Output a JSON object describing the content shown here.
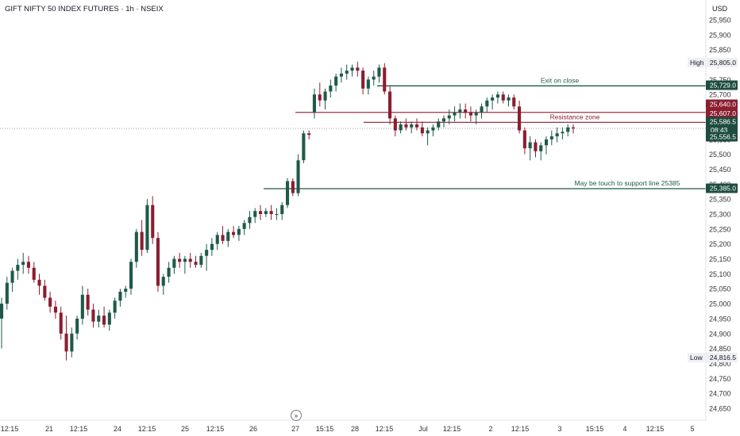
{
  "header": {
    "title": "GIFT NIFTY 50 INDEX FUTURES · 1h · NSEIX"
  },
  "currency": "USD",
  "colors": {
    "up": "#1e5a4a",
    "down": "#8b1e2f",
    "text": "#131722",
    "axis_text": "#333333",
    "current_line": "#9aa0a8",
    "support_line": "#1e5a4a",
    "exit_line": "#1e5a4a",
    "resistance_line": "#8b1e2f"
  },
  "scroll_icon": "double-chevron-right-icon",
  "chart_data": {
    "type": "candlestick",
    "title": "GIFT NIFTY 50 INDEX FUTURES · 1h · NSEIX",
    "ylim": [
      24600,
      26000
    ],
    "y_ticks": [
      24650,
      24700,
      24750,
      24800,
      24850,
      24900,
      24950,
      25000,
      25050,
      25100,
      25150,
      25200,
      25250,
      25300,
      25350,
      25400,
      25450,
      25500,
      25550,
      25600,
      25650,
      25700,
      25750,
      25800,
      25850,
      25900,
      25950
    ],
    "x_tick_labels": [
      "12:15",
      "21",
      "12:15",
      "24",
      "12:15",
      "25",
      "12:15",
      "26",
      "27",
      "15:15",
      "28",
      "12:15",
      "Jul",
      "12:15",
      "2",
      "12:15",
      "3",
      "15:15",
      "4",
      "12:15",
      "5"
    ],
    "price_tags": [
      {
        "label": "",
        "value": "25,729.0",
        "kind": "exit"
      },
      {
        "label": "",
        "value": "25,640.0",
        "kind": "resistance"
      },
      {
        "label": "",
        "value": "25,607.0",
        "kind": "resistance"
      },
      {
        "label": "",
        "value": "25,586.5",
        "countdown": "08:43",
        "kind": "current"
      },
      {
        "label": "",
        "value": "25,556.5",
        "kind": "current-low"
      },
      {
        "label": "",
        "value": "25,385.0",
        "kind": "support"
      },
      {
        "label": "High",
        "value": "25,805.0",
        "kind": "high"
      },
      {
        "label": "Low",
        "value": "24,816.5",
        "kind": "low"
      }
    ],
    "lines": [
      {
        "name": "exit",
        "price": 25729,
        "label": "Exit on close"
      },
      {
        "name": "resistance-upper",
        "price": 25640,
        "label": ""
      },
      {
        "name": "resistance-lower",
        "price": 25607,
        "label": "Resistance zone"
      },
      {
        "name": "support",
        "price": 25385,
        "label": "May be touch to support line 25385"
      },
      {
        "name": "current",
        "price": 25586.5,
        "label": ""
      }
    ],
    "ohlc": [
      [
        24950,
        25020,
        24850,
        25000
      ],
      [
        25000,
        25090,
        24980,
        25070
      ],
      [
        25070,
        25120,
        25040,
        25110
      ],
      [
        25110,
        25150,
        25080,
        25130
      ],
      [
        25130,
        25170,
        25100,
        25140
      ],
      [
        25140,
        25160,
        25100,
        25120
      ],
      [
        25120,
        25140,
        25070,
        25080
      ],
      [
        25080,
        25100,
        25030,
        25060
      ],
      [
        25060,
        25080,
        25010,
        25020
      ],
      [
        25020,
        25040,
        24970,
        24990
      ],
      [
        24990,
        25010,
        24950,
        24970
      ],
      [
        24970,
        24990,
        24880,
        24900
      ],
      [
        24900,
        24960,
        24810,
        24840
      ],
      [
        24840,
        24920,
        24820,
        24900
      ],
      [
        24900,
        24960,
        24880,
        24950
      ],
      [
        24950,
        25060,
        24930,
        25030
      ],
      [
        25030,
        25050,
        24960,
        24980
      ],
      [
        24980,
        25000,
        24920,
        24940
      ],
      [
        24940,
        24980,
        24920,
        24960
      ],
      [
        24960,
        24990,
        24920,
        24930
      ],
      [
        24930,
        24980,
        24910,
        24970
      ],
      [
        24970,
        25020,
        24950,
        25010
      ],
      [
        25010,
        25050,
        24990,
        25040
      ],
      [
        25040,
        25060,
        25020,
        25050
      ],
      [
        25050,
        25150,
        25030,
        25140
      ],
      [
        25140,
        25250,
        25120,
        25240
      ],
      [
        25240,
        25280,
        25160,
        25180
      ],
      [
        25180,
        25350,
        25170,
        25330
      ],
      [
        25330,
        25360,
        25200,
        25220
      ],
      [
        25220,
        25240,
        25040,
        25060
      ],
      [
        25060,
        25100,
        25030,
        25090
      ],
      [
        25090,
        25140,
        25070,
        25120
      ],
      [
        25120,
        25160,
        25100,
        25150
      ],
      [
        25150,
        25170,
        25120,
        25140
      ],
      [
        25140,
        25160,
        25100,
        25150
      ],
      [
        25150,
        25170,
        25120,
        25140
      ],
      [
        25140,
        25160,
        25120,
        25130
      ],
      [
        25130,
        25170,
        25120,
        25160
      ],
      [
        25160,
        25200,
        25110,
        25180
      ],
      [
        25180,
        25220,
        25160,
        25200
      ],
      [
        25200,
        25240,
        25180,
        25230
      ],
      [
        25230,
        25260,
        25200,
        25210
      ],
      [
        25210,
        25250,
        25190,
        25240
      ],
      [
        25240,
        25260,
        25220,
        25230
      ],
      [
        25230,
        25260,
        25210,
        25250
      ],
      [
        25250,
        25280,
        25230,
        25270
      ],
      [
        25270,
        25310,
        25250,
        25290
      ],
      [
        25290,
        25320,
        25270,
        25310
      ],
      [
        25310,
        25330,
        25280,
        25300
      ],
      [
        25300,
        25320,
        25290,
        25310
      ],
      [
        25310,
        25330,
        25280,
        25300
      ],
      [
        25300,
        25320,
        25280,
        25300
      ],
      [
        25300,
        25340,
        25280,
        25330
      ],
      [
        25330,
        25420,
        25320,
        25410
      ],
      [
        25410,
        25420,
        25360,
        25370
      ],
      [
        25370,
        25500,
        25360,
        25480
      ],
      [
        25480,
        25580,
        25470,
        25570
      ],
      [
        25570,
        25580,
        25550,
        25565
      ],
      [
        25640,
        25720,
        25620,
        25700
      ],
      [
        25700,
        25740,
        25660,
        25680
      ],
      [
        25680,
        25720,
        25650,
        25710
      ],
      [
        25710,
        25750,
        25690,
        25730
      ],
      [
        25730,
        25770,
        25710,
        25760
      ],
      [
        25760,
        25790,
        25740,
        25770
      ],
      [
        25770,
        25800,
        25750,
        25780
      ],
      [
        25780,
        25800,
        25760,
        25790
      ],
      [
        25790,
        25810,
        25760,
        25780
      ],
      [
        25780,
        25790,
        25700,
        25720
      ],
      [
        25720,
        25760,
        25700,
        25750
      ],
      [
        25750,
        25780,
        25730,
        25760
      ],
      [
        25760,
        25800,
        25740,
        25790
      ],
      [
        25790,
        25805,
        25700,
        25710
      ],
      [
        25710,
        25730,
        25600,
        25620
      ],
      [
        25620,
        25630,
        25560,
        25580
      ],
      [
        25580,
        25610,
        25570,
        25600
      ],
      [
        25600,
        25620,
        25580,
        25590
      ],
      [
        25590,
        25610,
        25570,
        25600
      ],
      [
        25600,
        25620,
        25580,
        25590
      ],
      [
        25590,
        25610,
        25560,
        25570
      ],
      [
        25570,
        25590,
        25530,
        25580
      ],
      [
        25580,
        25600,
        25560,
        25590
      ],
      [
        25590,
        25620,
        25580,
        25610
      ],
      [
        25610,
        25630,
        25590,
        25620
      ],
      [
        25620,
        25650,
        25600,
        25630
      ],
      [
        25630,
        25660,
        25610,
        25640
      ],
      [
        25640,
        25670,
        25620,
        25650
      ],
      [
        25650,
        25670,
        25620,
        25640
      ],
      [
        25640,
        25660,
        25610,
        25630
      ],
      [
        25630,
        25650,
        25600,
        25640
      ],
      [
        25640,
        25670,
        25620,
        25660
      ],
      [
        25660,
        25690,
        25640,
        25680
      ],
      [
        25680,
        25700,
        25650,
        25690
      ],
      [
        25690,
        25710,
        25670,
        25700
      ],
      [
        25700,
        25710,
        25670,
        25680
      ],
      [
        25680,
        25700,
        25660,
        25690
      ],
      [
        25690,
        25700,
        25650,
        25660
      ],
      [
        25660,
        25680,
        25570,
        25580
      ],
      [
        25580,
        25590,
        25500,
        25520
      ],
      [
        25520,
        25560,
        25480,
        25540
      ],
      [
        25540,
        25550,
        25490,
        25510
      ],
      [
        25510,
        25540,
        25480,
        25530
      ],
      [
        25530,
        25560,
        25500,
        25550
      ],
      [
        25550,
        25580,
        25530,
        25560
      ],
      [
        25560,
        25590,
        25540,
        25570
      ],
      [
        25570,
        25590,
        25550,
        25575
      ],
      [
        25575,
        25600,
        25560,
        25590
      ],
      [
        25590,
        25600,
        25570,
        25586.5
      ]
    ]
  }
}
